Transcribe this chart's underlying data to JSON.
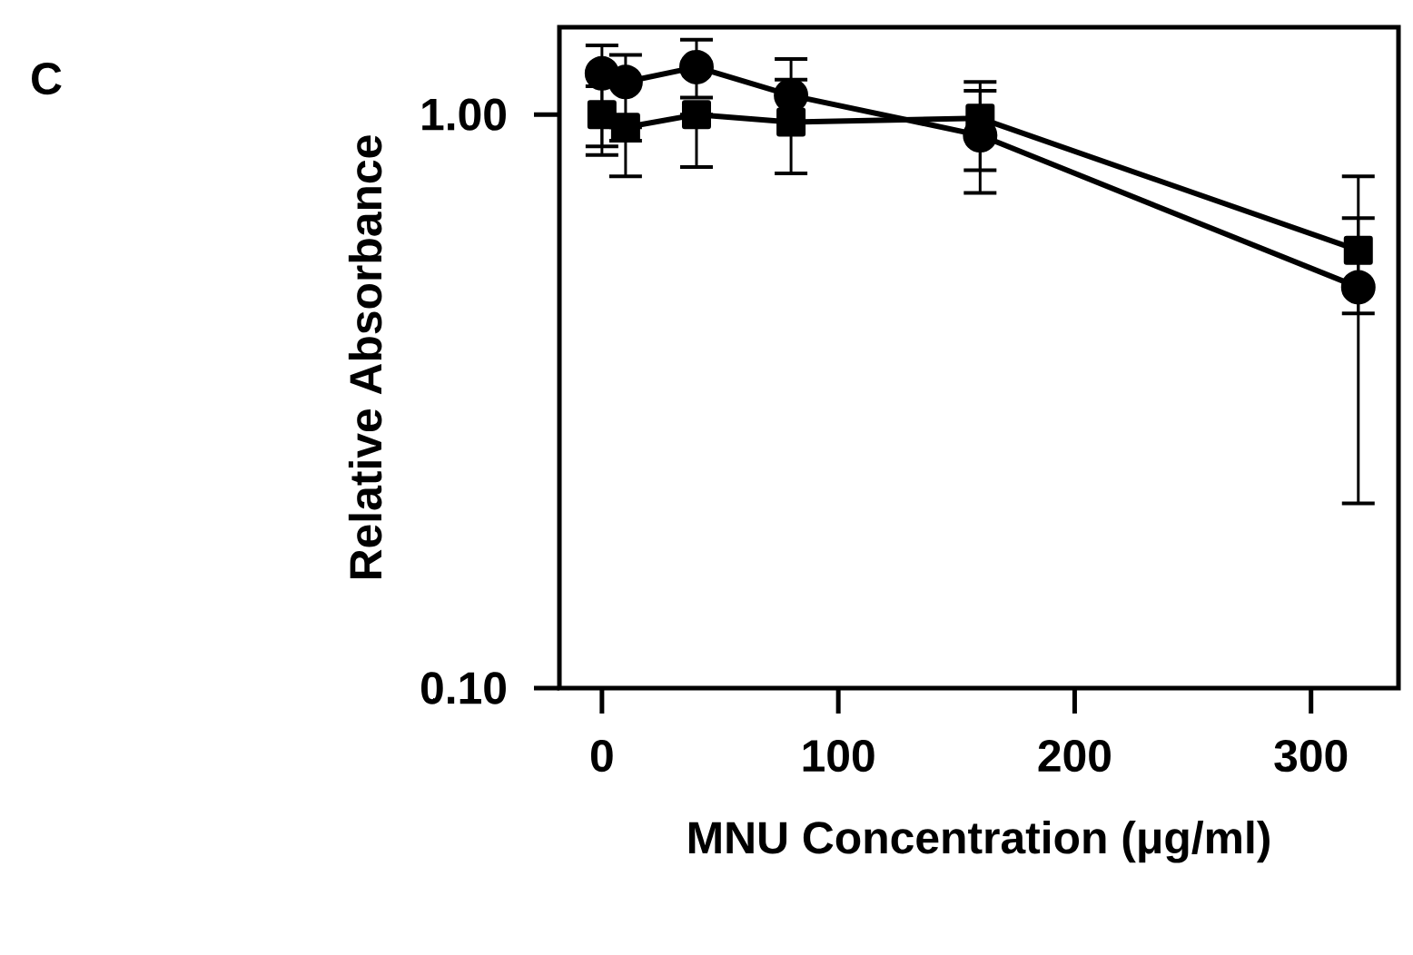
{
  "chart_data": {
    "type": "line",
    "xlabel": "MNU Concentration (μg/ml)",
    "ylabel": "Relative Absorbance",
    "annotations": [
      "C"
    ],
    "log": "y",
    "grid": false,
    "xlim": [
      -18,
      337
    ],
    "ylim": [
      0.1,
      1.42
    ],
    "xticks": [
      0,
      100,
      200,
      300
    ],
    "yticks": [
      {
        "value": 0.1,
        "label": "0.10"
      },
      {
        "value": 1,
        "label": "1.00"
      }
    ],
    "x": [
      0,
      10,
      40,
      80,
      160,
      320
    ],
    "series": [
      {
        "color": "#000000",
        "marker": "square",
        "line_style": "solid",
        "values": [
          1.0,
          0.95,
          1.0,
          0.97,
          0.985,
          0.58
        ],
        "errors": [
          [
            0.88,
            1.12
          ],
          [
            0.78,
            0.95
          ],
          [
            0.81,
            1.0
          ],
          [
            0.79,
            1.15
          ],
          [
            0.8,
            1.14
          ],
          [
            0.45,
            0.78
          ]
        ]
      },
      {
        "color": "#000000",
        "marker": "circle",
        "line_style": "solid",
        "values": [
          1.18,
          1.14,
          1.21,
          1.08,
          0.92,
          0.5
        ],
        "errors": [
          [
            0.85,
            1.32
          ],
          [
            0.9,
            1.27
          ],
          [
            1.07,
            1.35
          ],
          [
            1.08,
            1.25
          ],
          [
            0.73,
            1.1
          ],
          [
            0.21,
            0.66
          ]
        ]
      }
    ]
  }
}
